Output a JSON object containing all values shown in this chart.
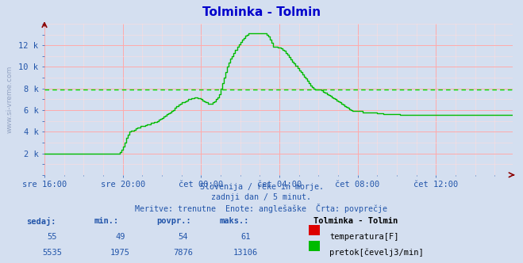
{
  "title": "Tolminka - Tolmin",
  "bg_color": "#d4dff0",
  "plot_bg_color": "#d4dff0",
  "flow_color": "#00bb00",
  "temp_color": "#dd0000",
  "avg_line_color": "#00dd00",
  "avg_value": 7876,
  "ylim": [
    0,
    14000
  ],
  "yticks": [
    0,
    2000,
    4000,
    6000,
    8000,
    10000,
    12000
  ],
  "ytick_labels": [
    "",
    "2 k",
    "4 k",
    "6 k",
    "8 k",
    "10 k",
    "12 k"
  ],
  "xtick_labels": [
    "sre 16:00",
    "sre 20:00",
    "čet 00:00",
    "čet 04:00",
    "čet 08:00",
    "čet 12:00"
  ],
  "subtitle1": "Slovenija / reke in morje.",
  "subtitle2": "zadnji dan / 5 minut.",
  "subtitle3": "Meritve: trenutne  Enote: anglešaške  Črta: povprečje",
  "legend_title": "Tolminka - Tolmin",
  "label_color": "#2255aa",
  "grid_color_major": "#ffaaaa",
  "grid_color_minor": "#ffdddd",
  "stats_temp": {
    "sedaj": 55,
    "min": 49,
    "povpr": 54,
    "maks": 61
  },
  "stats_flow": {
    "sedaj": 5535,
    "min": 1975,
    "povpr": 7876,
    "maks": 13106
  },
  "flow_data": [
    1975,
    1975,
    1975,
    1975,
    1975,
    1975,
    1975,
    1975,
    1975,
    1975,
    1975,
    1975,
    1975,
    1975,
    1975,
    1975,
    1975,
    1975,
    1975,
    1975,
    1975,
    1975,
    1975,
    1975,
    1975,
    1975,
    1975,
    1975,
    1975,
    1975,
    1975,
    1975,
    1975,
    1975,
    1975,
    1975,
    1975,
    1975,
    1975,
    1975,
    1975,
    1975,
    1975,
    1975,
    1975,
    2000,
    2100,
    2300,
    2600,
    3000,
    3400,
    3700,
    4000,
    4100,
    4100,
    4200,
    4300,
    4400,
    4400,
    4500,
    4500,
    4500,
    4600,
    4700,
    4700,
    4800,
    4800,
    4900,
    4900,
    5000,
    5100,
    5200,
    5300,
    5400,
    5500,
    5600,
    5700,
    5800,
    5900,
    6000,
    6200,
    6400,
    6500,
    6600,
    6700,
    6700,
    6800,
    6900,
    7000,
    7000,
    7100,
    7100,
    7200,
    7200,
    7100,
    7100,
    7000,
    6900,
    6800,
    6700,
    6600,
    6600,
    6600,
    6700,
    6800,
    7000,
    7200,
    7500,
    8000,
    8500,
    9000,
    9500,
    10000,
    10400,
    10800,
    11000,
    11300,
    11600,
    11900,
    12100,
    12300,
    12500,
    12700,
    12900,
    13000,
    13100,
    13106,
    13106,
    13106,
    13106,
    13106,
    13106,
    13106,
    13106,
    13106,
    13100,
    13000,
    12800,
    12500,
    12200,
    11900,
    11900,
    11900,
    11800,
    11800,
    11700,
    11600,
    11500,
    11300,
    11100,
    10900,
    10700,
    10500,
    10300,
    10100,
    9900,
    9700,
    9500,
    9300,
    9100,
    8900,
    8700,
    8500,
    8300,
    8100,
    8000,
    7900,
    7900,
    7900,
    7900,
    7800,
    7700,
    7600,
    7500,
    7400,
    7300,
    7200,
    7100,
    7000,
    6900,
    6800,
    6700,
    6600,
    6500,
    6400,
    6300,
    6200,
    6100,
    6000,
    5900,
    5900,
    5900,
    5900,
    5900,
    5900,
    5800,
    5800,
    5800,
    5800,
    5800,
    5800,
    5800,
    5800,
    5800,
    5700,
    5700,
    5700,
    5700,
    5600,
    5600,
    5600,
    5600,
    5600,
    5600,
    5600,
    5600,
    5600,
    5600,
    5535,
    5535,
    5535,
    5535,
    5535,
    5535,
    5535,
    5535,
    5535,
    5535,
    5535,
    5535,
    5535,
    5535,
    5535,
    5535,
    5535,
    5535,
    5535,
    5535,
    5535,
    5535,
    5535,
    5535,
    5535,
    5535,
    5535,
    5535,
    5535,
    5535,
    5535,
    5535,
    5535,
    5535,
    5535,
    5535,
    5535,
    5535,
    5535,
    5535,
    5535,
    5535,
    5535,
    5535,
    5535,
    5535,
    5535,
    5535,
    5535,
    5535,
    5535,
    5535,
    5535,
    5535,
    5535,
    5535,
    5535,
    5535,
    5535,
    5535,
    5535,
    5535,
    5535,
    5535,
    5535,
    5535,
    5535,
    5535,
    5535,
    5535
  ]
}
